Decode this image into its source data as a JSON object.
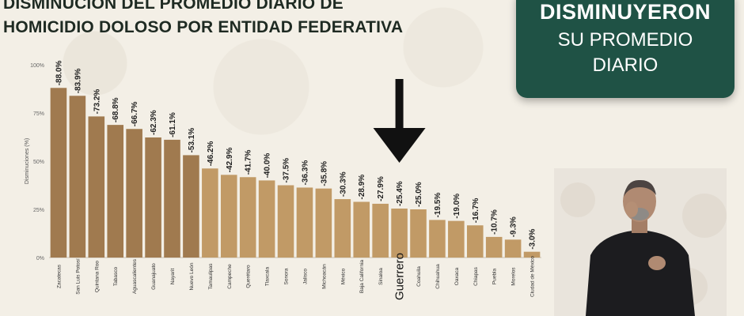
{
  "title": {
    "line1": "DISMINUCIÓN DEL PROMEDIO DIARIO DE",
    "line2": "HOMICIDIO DOLOSO POR ENTIDAD FEDERATIVA"
  },
  "badge": {
    "line1": "DISMINUYERON",
    "line2": "SU PROMEDIO",
    "line3": "DIARIO"
  },
  "colors": {
    "dark_bar": "#a07a4f",
    "light_bar": "#c19a66",
    "badge": "#1f5245",
    "arrow": "#111111"
  },
  "icons": {
    "arrow": "down-arrow-icon"
  },
  "chart_data": {
    "type": "bar",
    "ylabel": "Disminuciones (%)",
    "ylim": [
      0,
      100
    ],
    "yticks": [
      "0%",
      "25%",
      "50%",
      "75%",
      "100%"
    ],
    "categories": [
      "Zacatecas",
      "San Luis Potosí",
      "Quintana Roo",
      "Tabasco",
      "Aguascalientes",
      "Guanajuato",
      "Nayarit",
      "Nuevo León",
      "Tamaulipas",
      "Campeche",
      "Querétaro",
      "Tlaxcala",
      "Sonora",
      "Jalisco",
      "Michoacán",
      "México",
      "Baja California",
      "Sinaloa",
      "Guerrero",
      "Coahuila",
      "Chihuahua",
      "Oaxaca",
      "Chiapas",
      "Puebla",
      "Morelos",
      "Ciudad de México"
    ],
    "values": [
      88.0,
      83.9,
      73.2,
      68.8,
      66.7,
      62.3,
      61.1,
      53.1,
      46.2,
      42.9,
      41.7,
      40.0,
      37.5,
      36.3,
      35.8,
      30.3,
      28.9,
      27.9,
      25.4,
      25.0,
      19.5,
      19.0,
      16.7,
      10.7,
      9.3,
      3.0
    ],
    "labels": [
      "-88.0%",
      "-83.9%",
      "-73.2%",
      "-68.8%",
      "-66.7%",
      "-62.3%",
      "-61.1%",
      "-53.1%",
      "-46.2%",
      "-42.9%",
      "-41.7%",
      "-40.0%",
      "-37.5%",
      "-36.3%",
      "-35.8%",
      "-30.3%",
      "-28.9%",
      "-27.9%",
      "-25.4%",
      "-25.0%",
      "-19.5%",
      "-19.0%",
      "-16.7%",
      "-10.7%",
      "-9.3%",
      "-3.0%"
    ],
    "dark_count": 8,
    "highlight": "Guerrero"
  }
}
